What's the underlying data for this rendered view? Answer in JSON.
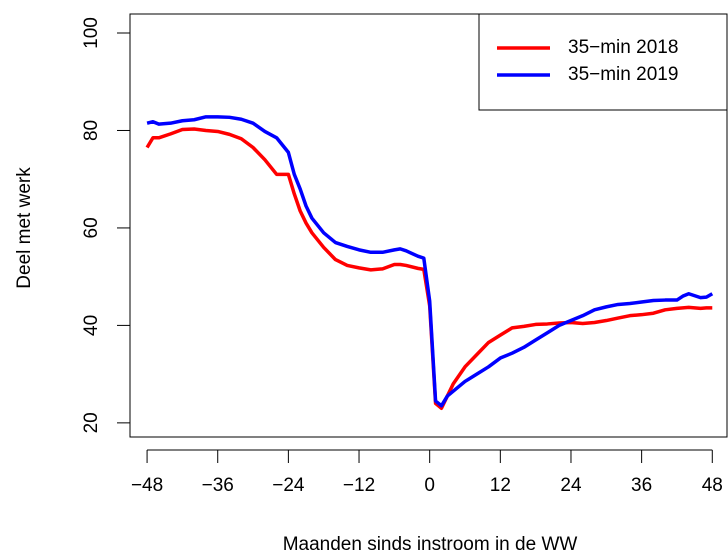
{
  "chart_data": {
    "type": "line",
    "x_label": "Maanden sinds instroom in de WW",
    "y_label": "Deel met werk",
    "x": [
      -48,
      -47,
      -46,
      -44,
      -42,
      -40,
      -38,
      -36,
      -34,
      -32,
      -30,
      -28,
      -26,
      -24,
      -23,
      -22,
      -21,
      -20,
      -18,
      -16,
      -14,
      -12,
      -10,
      -8,
      -6,
      -5,
      -4,
      -2,
      -1,
      0,
      1,
      2,
      3,
      4,
      6,
      8,
      10,
      12,
      14,
      16,
      18,
      20,
      22,
      24,
      26,
      28,
      30,
      32,
      34,
      36,
      38,
      40,
      42,
      43,
      44,
      46,
      47,
      48
    ],
    "series": [
      {
        "name": "35−min 2018",
        "color": "#ff0000",
        "values": [
          76.5,
          78.5,
          78.5,
          79.3,
          80.2,
          80.3,
          80.0,
          79.8,
          79.2,
          78.3,
          76.5,
          74,
          71,
          71,
          67,
          63.5,
          61,
          59,
          56,
          53.5,
          52.3,
          51.8,
          51.4,
          51.6,
          52.5,
          52.5,
          52.3,
          51.7,
          51.5,
          44,
          24,
          23,
          25.5,
          28,
          31.5,
          34,
          36.5,
          38,
          39.5,
          39.8,
          40.2,
          40.3,
          40.5,
          40.6,
          40.4,
          40.6,
          41,
          41.5,
          42,
          42.2,
          42.5,
          43.2,
          43.5,
          43.6,
          43.7,
          43.5,
          43.6,
          43.6
        ]
      },
      {
        "name": "35−min 2019",
        "color": "#0000ff",
        "values": [
          81.5,
          81.8,
          81.3,
          81.5,
          82,
          82.2,
          82.8,
          82.8,
          82.7,
          82.3,
          81.5,
          79.8,
          78.5,
          75.5,
          71,
          68,
          64.5,
          62,
          59,
          57,
          56.2,
          55.5,
          55,
          55,
          55.5,
          55.7,
          55.3,
          54.2,
          53.8,
          45,
          24.5,
          23.5,
          25.5,
          26.5,
          28.5,
          30,
          31.5,
          33.3,
          34.3,
          35.5,
          37,
          38.5,
          40,
          41,
          42,
          43.2,
          43.8,
          44.3,
          44.5,
          44.8,
          45.1,
          45.2,
          45.2,
          46,
          46.5,
          45.7,
          45.8,
          46.5
        ]
      }
    ],
    "xlim": [
      -50.9,
      50.5
    ],
    "ylim": [
      17.1,
      103.9
    ],
    "xticks": [
      {
        "value": -48,
        "label": "−48"
      },
      {
        "value": -36,
        "label": "−36"
      },
      {
        "value": -24,
        "label": "−24"
      },
      {
        "value": -12,
        "label": "−12"
      },
      0,
      12,
      24,
      36,
      48
    ],
    "yticks": [
      20,
      40,
      60,
      80,
      100
    ],
    "legend": "top-right"
  }
}
